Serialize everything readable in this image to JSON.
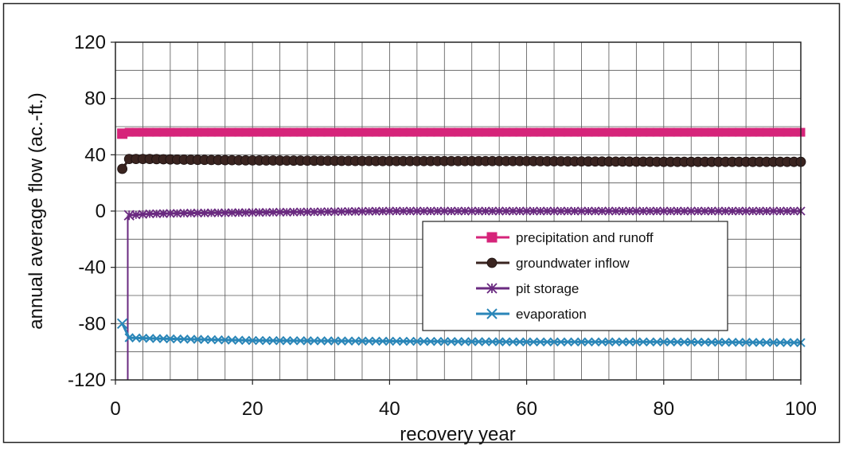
{
  "chart_data": {
    "type": "line",
    "title": "",
    "xlabel": "recovery year",
    "ylabel": "annual average flow (ac.-ft.)",
    "xlim": [
      0,
      100
    ],
    "ylim": [
      -120,
      120
    ],
    "xticks": [
      0,
      20,
      40,
      60,
      80,
      100
    ],
    "yticks": [
      -120,
      -80,
      -40,
      0,
      40,
      80,
      120
    ],
    "grid": true,
    "legend_position": "lower-right",
    "series": [
      {
        "name": "precipitation and runoff",
        "color": "#d6247a",
        "marker": "square",
        "x": [
          1,
          2,
          10,
          20,
          40,
          60,
          80,
          100
        ],
        "y": [
          55,
          56,
          56,
          56,
          56,
          56,
          56,
          56
        ]
      },
      {
        "name": "groundwater inflow",
        "color": "#3a2420",
        "marker": "circle",
        "x": [
          1,
          2,
          5,
          10,
          20,
          40,
          60,
          80,
          100
        ],
        "y": [
          30,
          37,
          37,
          36.5,
          36,
          35.5,
          35.5,
          35,
          35
        ]
      },
      {
        "name": "pit storage",
        "color": "#6a2a80",
        "marker": "star",
        "x": [
          2,
          5,
          10,
          20,
          40,
          60,
          80,
          100
        ],
        "y": [
          -3,
          -2,
          -1.5,
          -1,
          0,
          0,
          0,
          0
        ]
      },
      {
        "name": "evaporation",
        "color": "#2a86b8",
        "marker": "x",
        "x": [
          1,
          2,
          5,
          10,
          20,
          40,
          60,
          80,
          100
        ],
        "y": [
          -80,
          -90,
          -90.5,
          -91,
          -92,
          -92.5,
          -93,
          -93,
          -93.5
        ]
      }
    ]
  }
}
